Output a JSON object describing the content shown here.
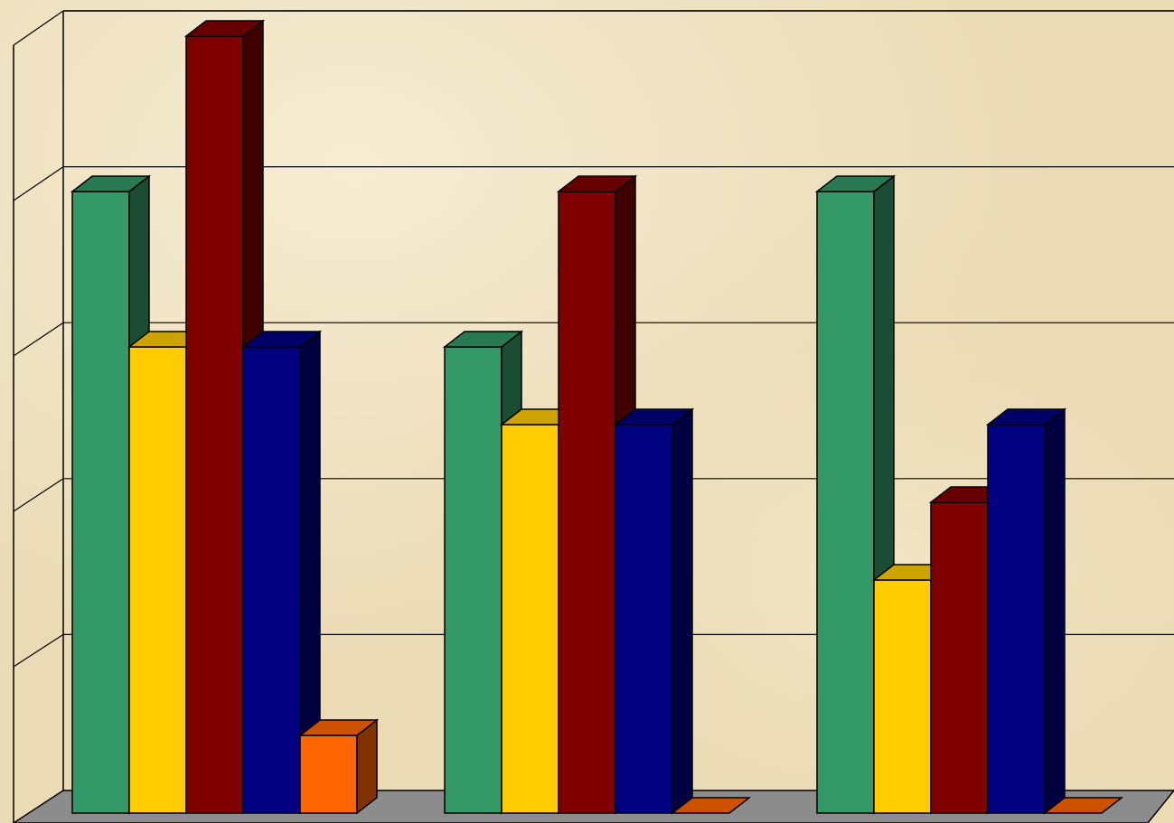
{
  "chart_data": {
    "type": "bar",
    "categories": [
      null,
      null,
      null
    ],
    "series": [
      {
        "color": "#339966",
        "values": [
          4,
          3,
          4
        ]
      },
      {
        "color": "#ffcc00",
        "values": [
          3,
          2.5,
          1.5
        ]
      },
      {
        "color": "#800000",
        "values": [
          5,
          4,
          2
        ]
      },
      {
        "color": "#000080",
        "values": [
          3,
          2.5,
          2.5
        ]
      },
      {
        "color": "#ff6600",
        "values": [
          0.5,
          0,
          0
        ]
      }
    ],
    "ylim": [
      0,
      5
    ],
    "yticks": [
      0,
      1,
      2,
      3,
      4,
      5
    ],
    "grid": true
  }
}
